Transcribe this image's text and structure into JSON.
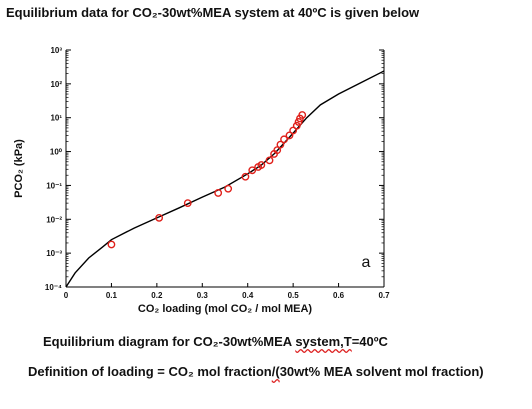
{
  "heading": "Equilibrium data for CO₂-30wt%MEA system at 40ºC is given below",
  "caption": {
    "text": "Equilibrium diagram for CO₂-30wt%MEA ",
    "flagged": "system,T",
    "after": "=40ºC"
  },
  "definition": {
    "before": "Definition of loading = CO₂ mol fraction",
    "flagged": "/(",
    "after": "30wt% MEA solvent mol fraction)"
  },
  "chart_data": {
    "type": "scatter",
    "xlabel": "CO₂ loading (mol CO₂ / mol MEA)",
    "ylabel": "PCO₂ (kPa)",
    "xlim": [
      0,
      0.7
    ],
    "ylim": [
      0.0001,
      1000
    ],
    "yscale": "log",
    "xticks": [
      "0",
      "0.1",
      "0.2",
      "0.3",
      "0.4",
      "0.5",
      "0.6",
      "0.7"
    ],
    "yticks": [
      "10⁻⁴",
      "10⁻³",
      "10⁻²",
      "10⁻¹",
      "10⁰",
      "10¹",
      "10²",
      "10³"
    ],
    "panel_label": "a",
    "grid": false,
    "series": [
      {
        "kind": "points",
        "marker": "open-circle",
        "color": "#e0201a",
        "x": [
          0.1,
          0.205,
          0.268,
          0.335,
          0.357,
          0.395,
          0.41,
          0.423,
          0.43,
          0.448,
          0.458,
          0.465,
          0.472,
          0.48,
          0.492,
          0.5,
          0.508,
          0.512,
          0.515,
          0.52
        ],
        "y": [
          0.0018,
          0.011,
          0.03,
          0.06,
          0.08,
          0.18,
          0.28,
          0.35,
          0.4,
          0.55,
          0.85,
          1.1,
          1.6,
          2.3,
          3.0,
          4.2,
          5.8,
          7.5,
          9.5,
          12.0
        ]
      },
      {
        "kind": "line",
        "color": "#000000",
        "x": [
          0.0,
          0.02,
          0.05,
          0.08,
          0.1,
          0.15,
          0.2,
          0.25,
          0.3,
          0.35,
          0.4,
          0.43,
          0.46,
          0.5,
          0.53,
          0.56,
          0.6,
          0.65,
          0.7
        ],
        "y": [
          0.0001,
          0.00026,
          0.00072,
          0.0015,
          0.0025,
          0.0055,
          0.011,
          0.022,
          0.045,
          0.09,
          0.22,
          0.4,
          0.9,
          3.5,
          10.0,
          24.0,
          50.0,
          110.0,
          240.0
        ]
      }
    ]
  }
}
